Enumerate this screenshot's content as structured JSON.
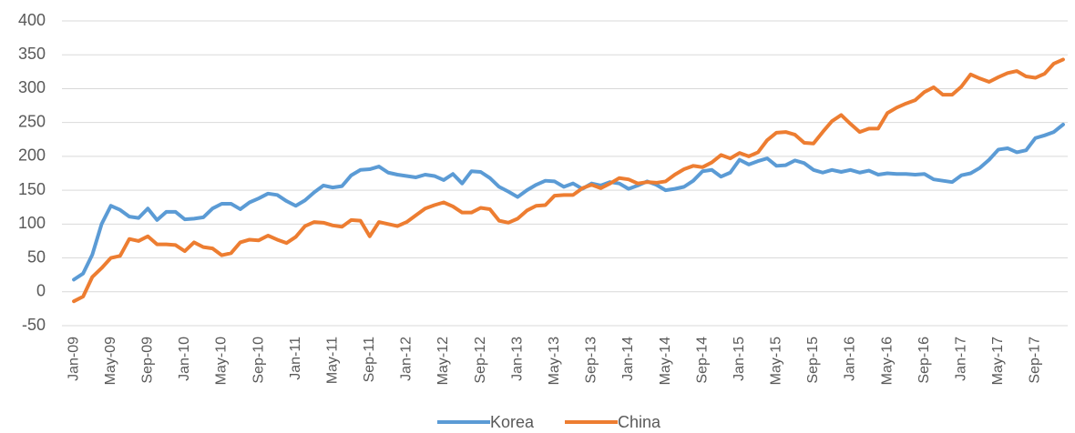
{
  "chart_data": {
    "type": "line",
    "categories": [
      "Jan-09",
      null,
      null,
      null,
      "May-09",
      null,
      null,
      null,
      "Sep-09",
      null,
      null,
      null,
      "Jan-10",
      null,
      null,
      null,
      "May-10",
      null,
      null,
      null,
      "Sep-10",
      null,
      null,
      null,
      "Jan-11",
      null,
      null,
      null,
      "May-11",
      null,
      null,
      null,
      "Sep-11",
      null,
      null,
      null,
      "Jan-12",
      null,
      null,
      null,
      "May-12",
      null,
      null,
      null,
      "Sep-12",
      null,
      null,
      null,
      "Jan-13",
      null,
      null,
      null,
      "May-13",
      null,
      null,
      null,
      "Sep-13",
      null,
      null,
      null,
      "Jan-14",
      null,
      null,
      null,
      "May-14",
      null,
      null,
      null,
      "Sep-14",
      null,
      null,
      null,
      "Jan-15",
      null,
      null,
      null,
      "May-15",
      null,
      null,
      null,
      "Sep-15",
      null,
      null,
      null,
      "Jan-16",
      null,
      null,
      null,
      "May-16",
      null,
      null,
      null,
      "Sep-16",
      null,
      null,
      null,
      "Jan-17",
      null,
      null,
      null,
      "May-17",
      null,
      null,
      null,
      "Sep-17",
      null,
      null,
      null
    ],
    "series": [
      {
        "name": "Korea",
        "color": "#5b9bd5",
        "values": [
          18,
          27,
          55,
          100,
          127,
          121,
          111,
          109,
          123,
          106,
          118,
          118,
          107,
          108,
          110,
          123,
          130,
          130,
          122,
          132,
          138,
          145,
          143,
          134,
          127,
          135,
          147,
          157,
          154,
          156,
          172,
          180,
          181,
          185,
          176,
          173,
          171,
          169,
          173,
          171,
          165,
          174,
          160,
          178,
          177,
          168,
          155,
          148,
          140,
          150,
          158,
          164,
          163,
          155,
          160,
          152,
          160,
          157,
          162,
          160,
          152,
          157,
          163,
          158,
          150,
          152,
          155,
          164,
          178,
          180,
          170,
          176,
          195,
          188,
          193,
          197,
          186,
          187,
          194,
          190,
          180,
          176,
          180,
          177,
          180,
          176,
          179,
          173,
          175,
          174,
          174,
          173,
          174,
          166,
          164,
          162,
          172,
          175,
          183,
          195,
          210,
          212,
          206,
          209,
          227,
          231,
          236,
          247
        ]
      },
      {
        "name": "China",
        "color": "#ed7d31",
        "values": [
          -14,
          -7,
          22,
          35,
          50,
          53,
          78,
          75,
          82,
          70,
          70,
          69,
          60,
          73,
          66,
          64,
          54,
          57,
          73,
          77,
          76,
          83,
          77,
          72,
          81,
          97,
          103,
          102,
          98,
          96,
          106,
          105,
          82,
          103,
          100,
          97,
          103,
          113,
          123,
          128,
          132,
          126,
          117,
          117,
          124,
          122,
          105,
          102,
          108,
          120,
          127,
          128,
          142,
          143,
          143,
          153,
          158,
          153,
          160,
          168,
          166,
          160,
          162,
          161,
          163,
          173,
          181,
          186,
          184,
          191,
          202,
          197,
          205,
          200,
          206,
          224,
          235,
          236,
          232,
          220,
          219,
          236,
          252,
          261,
          248,
          236,
          241,
          241,
          264,
          272,
          278,
          283,
          295,
          302,
          291,
          291,
          303,
          321,
          315,
          310,
          317,
          323,
          326,
          318,
          316,
          322,
          337,
          343
        ]
      }
    ],
    "ylim": [
      -50,
      400
    ],
    "yticks": [
      -50,
      0,
      50,
      100,
      150,
      200,
      250,
      300,
      350,
      400
    ],
    "grid": true
  }
}
